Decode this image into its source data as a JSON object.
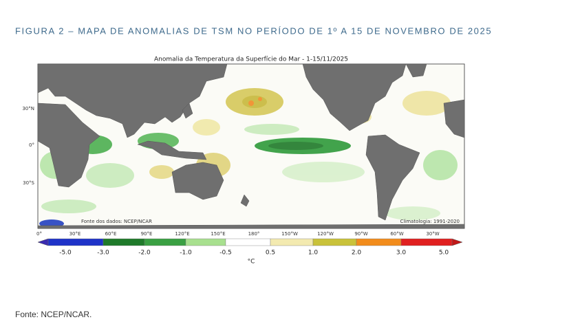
{
  "figure": {
    "caption": "FIGURA 2 – MAPA DE ANOMALIAS DE TSM NO PERÍODO DE 1º A 15 DE NOVEMBRO DE 2025",
    "map_title": "Anomalia da Temperatura da Superfície do Mar - 1-15/11/2025",
    "data_source": "Fonte dos dados: NCEP/NCAR",
    "climatology": "Climatologia: 1991-2020",
    "lat_labels": [
      "30°N",
      "0°",
      "30°S"
    ],
    "lon_labels": [
      "0°",
      "30°E",
      "60°E",
      "90°E",
      "120°E",
      "150°E",
      "180°",
      "150°W",
      "120°W",
      "90°W",
      "60°W",
      "30°W"
    ],
    "colorbar_labels": [
      "-5.0",
      "-3.0",
      "-2.0",
      "-1.0",
      "-0.5",
      "0.5",
      "1.0",
      "2.0",
      "3.0",
      "5.0"
    ],
    "colorbar_unit": "°C"
  },
  "footer": {
    "source": "Fonte: NCEP/NCAR."
  }
}
